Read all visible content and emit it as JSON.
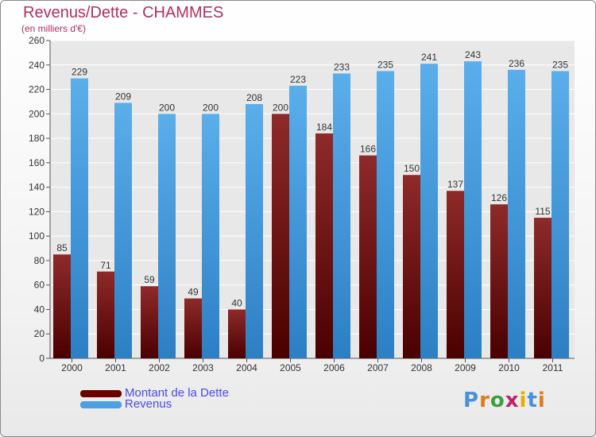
{
  "chart_data": {
    "type": "bar",
    "title": "Revenus/Dette - CHAMMES",
    "subtitle": "(en milliers d'€)",
    "categories": [
      "2000",
      "2001",
      "2002",
      "2003",
      "2004",
      "2005",
      "2006",
      "2007",
      "2008",
      "2009",
      "2010",
      "2011"
    ],
    "series": [
      {
        "name": "Montant de la Dette",
        "color": "#7a1a1a",
        "values": [
          85,
          71,
          59,
          49,
          40,
          200,
          184,
          166,
          150,
          137,
          126,
          115
        ]
      },
      {
        "name": "Revenus",
        "color": "#4aa0e0",
        "values": [
          229,
          209,
          200,
          200,
          208,
          223,
          233,
          235,
          241,
          243,
          236,
          235
        ]
      }
    ],
    "ylim": [
      0,
      260
    ],
    "yticks": [
      0,
      20,
      40,
      60,
      80,
      100,
      120,
      140,
      160,
      180,
      200,
      220,
      240,
      260
    ],
    "grid": true,
    "legend": "bottom-left"
  },
  "logo": {
    "letters": [
      "P",
      "r",
      "o",
      "x",
      "i",
      "t",
      "i"
    ],
    "colors": [
      "#4a90d9",
      "#e07b1a",
      "#3aa040",
      "#c0206a",
      "#e0b000",
      "#4a90d9",
      "#e07b1a"
    ]
  }
}
